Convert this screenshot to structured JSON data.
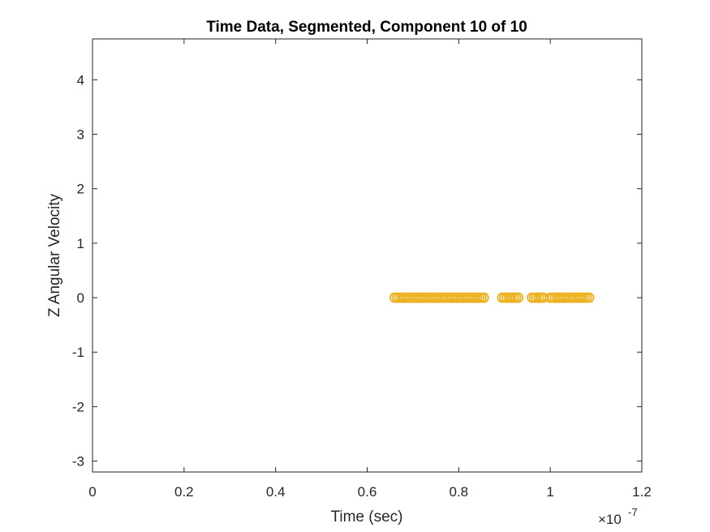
{
  "chart_data": {
    "type": "scatter",
    "title": "Time Data, Segmented, Component 10 of 10",
    "xlabel": "Time (sec)",
    "ylabel": "Z Angular Velocity",
    "x_exponent_label": "×10",
    "x_exponent_power": "-7",
    "x_scale": 1e-07,
    "xlim": [
      0,
      1.2
    ],
    "ylim": [
      -3.2,
      4.75
    ],
    "x_ticks": [
      0,
      0.2,
      0.4,
      0.6,
      0.8,
      1,
      1.2
    ],
    "x_tick_labels": [
      "0",
      "0.2",
      "0.4",
      "0.6",
      "0.8",
      "1",
      "1.2"
    ],
    "y_ticks": [
      -3,
      -2,
      -1,
      0,
      1,
      2,
      3,
      4
    ],
    "y_tick_labels": [
      "-3",
      "-2",
      "-1",
      "0",
      "1",
      "2",
      "3",
      "4"
    ],
    "grid": false,
    "marker_color": "#EDB120",
    "series": [
      {
        "marker": "circle",
        "x": [
          0.66,
          0.665,
          0.67,
          0.675,
          0.68,
          0.685,
          0.69,
          0.695,
          0.7,
          0.705,
          0.71,
          0.715,
          0.72,
          0.725,
          0.73,
          0.735,
          0.74,
          0.745,
          0.75,
          0.755,
          0.76,
          0.765,
          0.77,
          0.775,
          0.78,
          0.785,
          0.79,
          0.795,
          0.8,
          0.805,
          0.81,
          0.815,
          0.82,
          0.825,
          0.83,
          0.835,
          0.84,
          0.845,
          0.85,
          0.855,
          0.895,
          0.9,
          0.905,
          0.91,
          0.915,
          0.92,
          0.925,
          0.93,
          0.96,
          0.965,
          0.97,
          0.975,
          0.98,
          0.985,
          1.0,
          1.005,
          1.01,
          1.015,
          1.02,
          1.025,
          1.03,
          1.035,
          1.04,
          1.045,
          1.05,
          1.055,
          1.06,
          1.065,
          1.07,
          1.075,
          1.08,
          1.085
        ],
        "y": [
          0,
          0,
          0,
          0,
          0,
          0,
          0,
          0,
          0,
          0,
          0,
          0,
          0,
          0,
          0,
          0,
          0,
          0,
          0,
          0,
          0,
          0,
          0,
          0,
          0,
          0,
          0,
          0,
          0,
          0,
          0,
          0,
          0,
          0,
          0,
          0,
          0,
          0,
          0,
          0,
          0,
          0,
          0,
          0,
          0,
          0,
          0,
          0,
          0,
          0,
          0,
          0,
          0,
          0,
          0,
          0,
          0,
          0,
          0,
          0,
          0,
          0,
          0,
          0,
          0,
          0,
          0,
          0,
          0,
          0,
          0,
          0
        ]
      }
    ]
  }
}
